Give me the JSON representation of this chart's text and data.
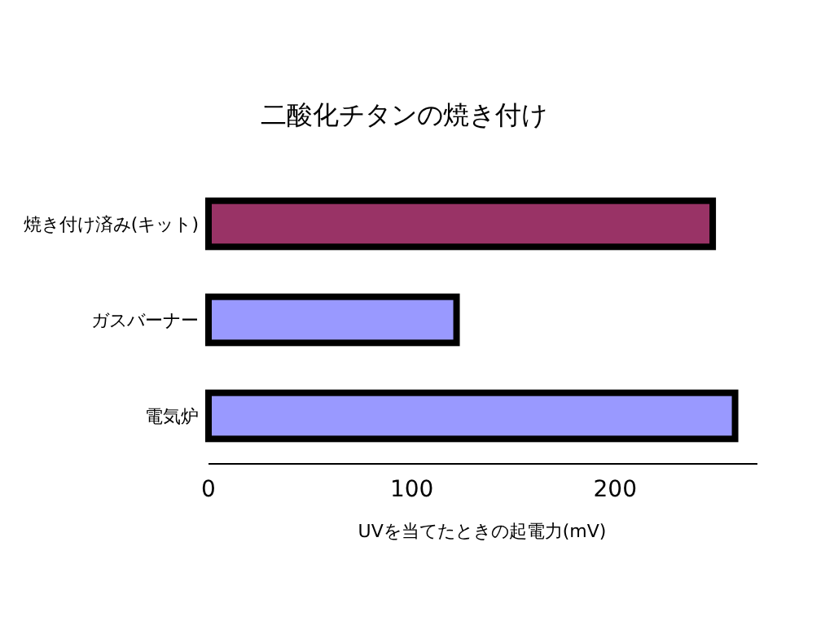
{
  "chart_data": {
    "type": "bar",
    "orientation": "horizontal",
    "title": "二酸化チタンの焼き付け",
    "xlabel": "UVを当てたときの起電力(mV)",
    "categories": [
      "焼き付け済み(キット)",
      "ガスバーナー",
      "電気炉"
    ],
    "values": [
      248,
      122,
      259
    ],
    "colors": [
      "#993366",
      "#9999ff",
      "#9999ff"
    ],
    "xlim": [
      0,
      270
    ],
    "xticks": [
      0,
      100,
      200
    ],
    "grid": false
  }
}
